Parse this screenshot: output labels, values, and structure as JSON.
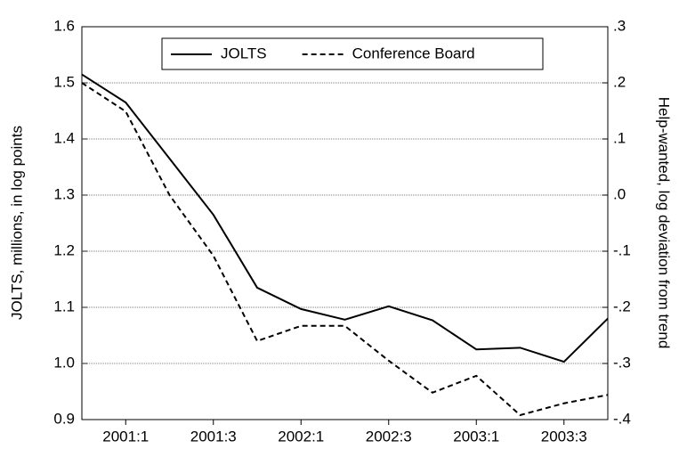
{
  "chart_data": {
    "type": "line",
    "y_label": "JOLTS, millions, in log points",
    "y2_label": "Help-wanted, log deviation from trend",
    "categories": [
      null,
      "2001:1",
      null,
      "2001:3",
      null,
      "2002:1",
      null,
      "2002:3",
      null,
      "2003:1",
      null,
      "2003:3",
      null
    ],
    "series": [
      {
        "name": "JOLTS",
        "color": "#000000",
        "style": "solid",
        "axis": "y",
        "values": [
          1.515,
          1.465,
          1.365,
          1.265,
          1.135,
          1.097,
          1.078,
          1.102,
          1.077,
          1.025,
          1.028,
          1.003,
          1.08
        ]
      },
      {
        "name": "Conference Board",
        "color": "#000000",
        "style": "dashed",
        "axis": "y2",
        "values": [
          0.2,
          0.149,
          0.0,
          -0.108,
          -0.26,
          -0.233,
          -0.233,
          -0.295,
          -0.352,
          -0.322,
          -0.392,
          -0.371,
          -0.356
        ]
      }
    ],
    "ylim": [
      0.9,
      1.6
    ],
    "yticks": [
      0.9,
      {
        "value": 1.0,
        "label": "1.0"
      },
      1.1,
      1.2,
      1.3,
      1.4,
      1.5,
      1.6
    ],
    "y2lim": [
      -0.4,
      0.3
    ],
    "y2ticks": [
      {
        "value": -0.4,
        "label": "-.4"
      },
      {
        "value": -0.3,
        "label": "-.3"
      },
      {
        "value": -0.2,
        "label": "-.2"
      },
      {
        "value": -0.1,
        "label": "-.1"
      },
      {
        "value": 0.0,
        "label": ".0"
      },
      {
        "value": 0.1,
        "label": ".1"
      },
      {
        "value": 0.2,
        "label": ".2"
      },
      {
        "value": 0.3,
        "label": ".3"
      }
    ],
    "grid": true,
    "legend": "top"
  }
}
